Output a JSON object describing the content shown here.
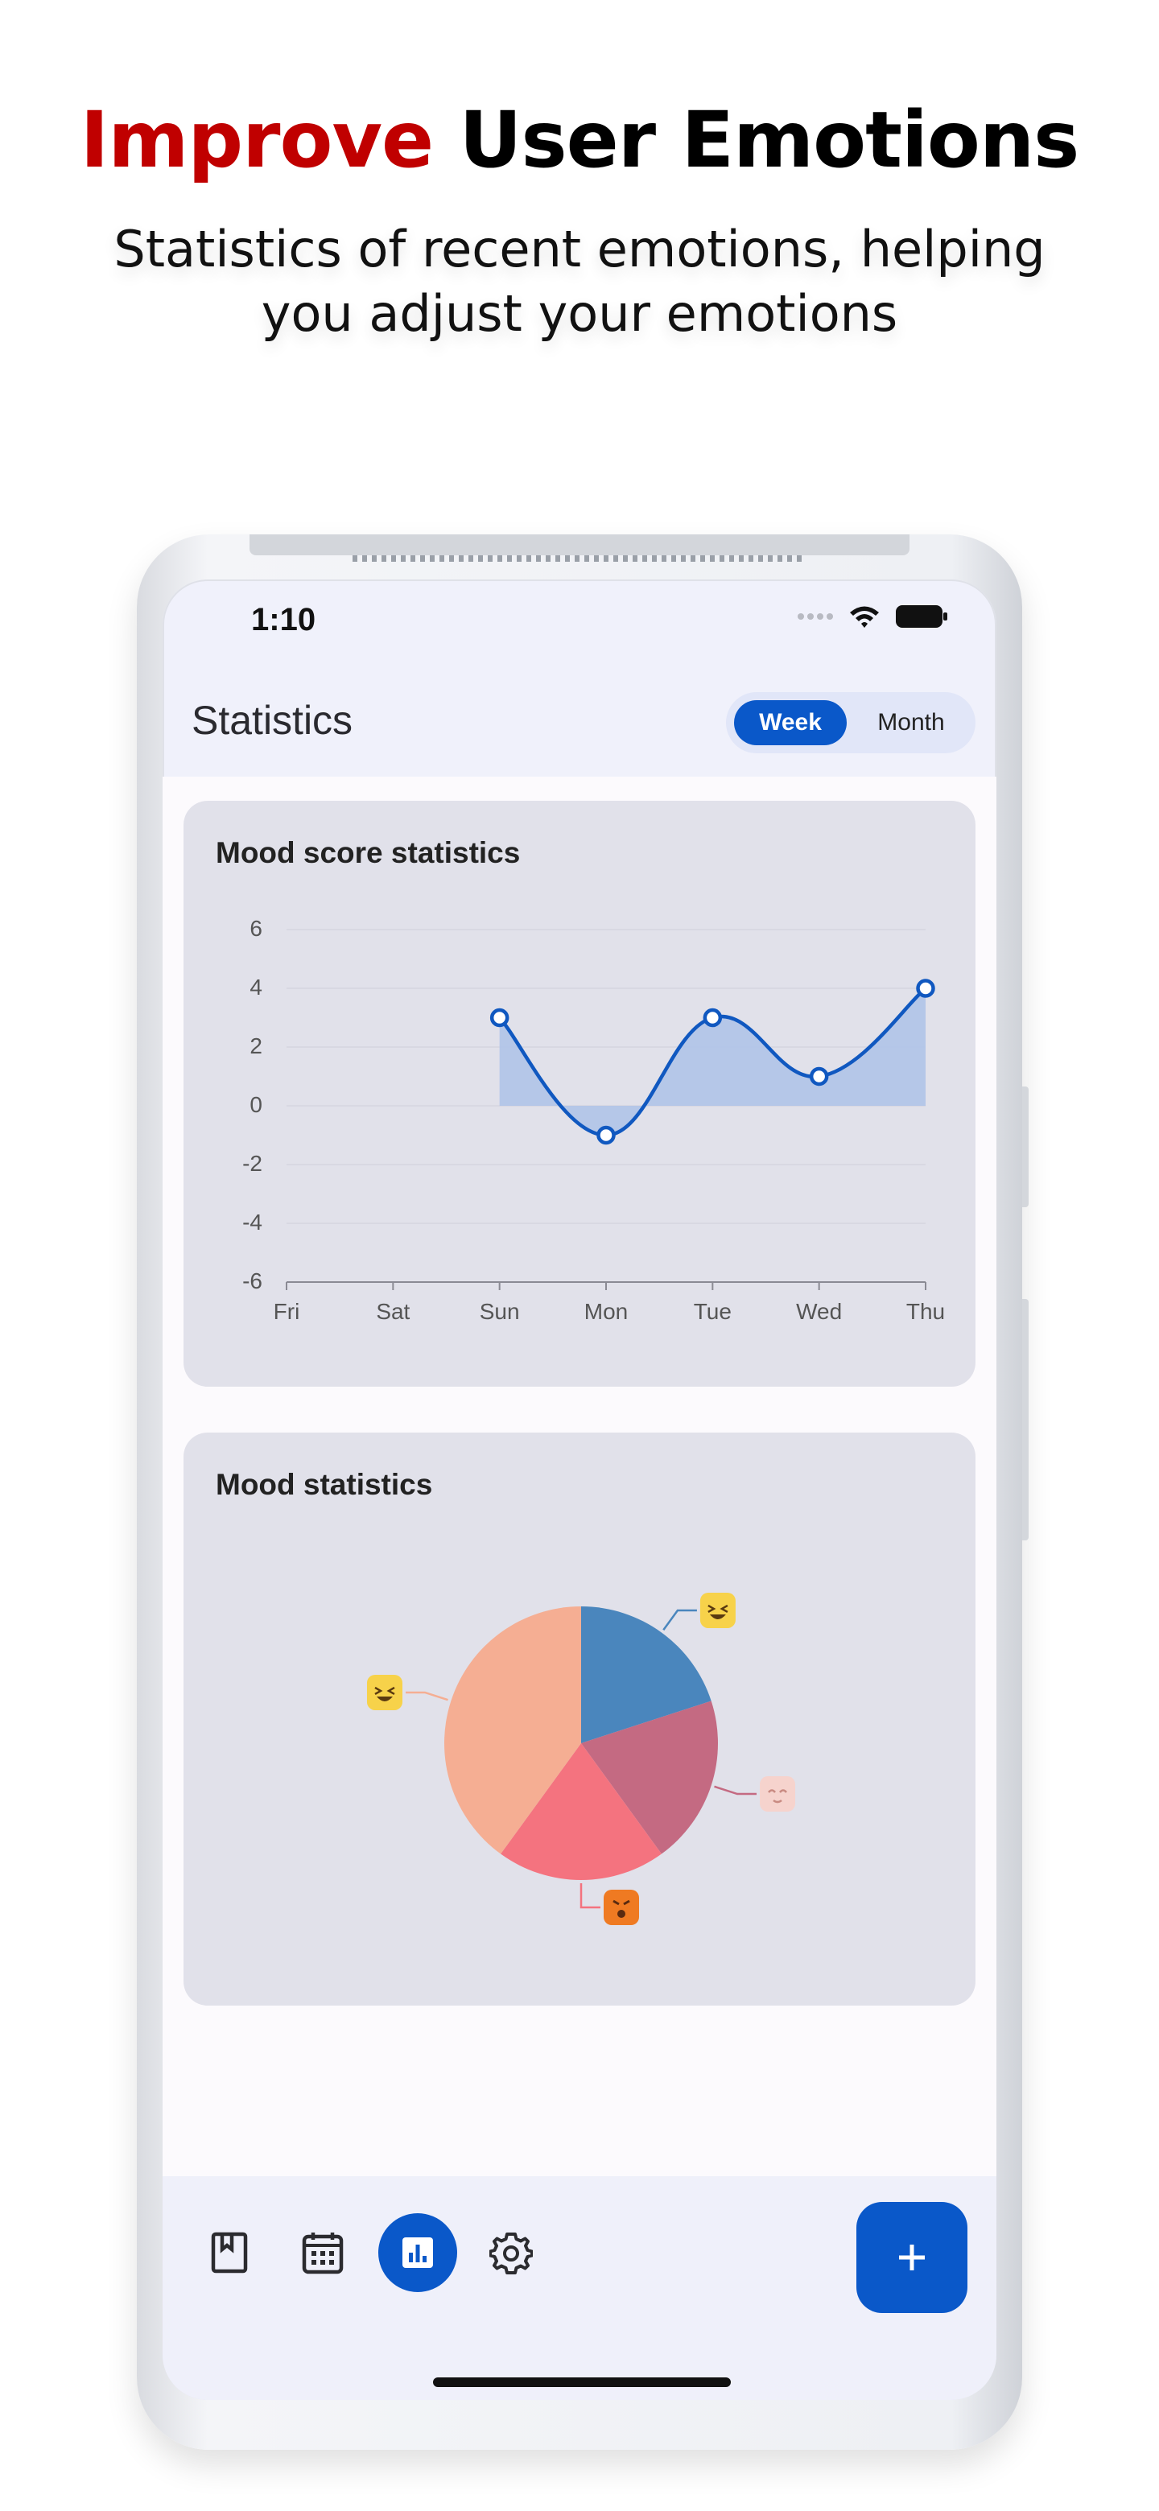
{
  "headline": {
    "accent": "Improve",
    "rest": " User Emotions"
  },
  "subline": "Statistics of recent emotions, helping you adjust your emotions",
  "status": {
    "time": "1:10"
  },
  "app": {
    "title": "Statistics",
    "segments": [
      "Week",
      "Month"
    ],
    "selected_segment": "Week"
  },
  "cards": {
    "mood_score": {
      "title": "Mood score statistics"
    },
    "mood": {
      "title": "Mood statistics"
    }
  },
  "chart_data": [
    {
      "type": "area",
      "title": "Mood score statistics",
      "categories": [
        "Fri",
        "Sat",
        "Sun",
        "Mon",
        "Tue",
        "Wed",
        "Thu"
      ],
      "y_ticks": [
        "6",
        "4",
        "2",
        "0",
        "-2",
        "-4",
        "-6"
      ],
      "ylim": [
        -6,
        6
      ],
      "series": [
        {
          "values": [
            null,
            null,
            3,
            -1,
            3,
            1,
            4
          ]
        }
      ],
      "grid": true,
      "colors": {
        "line": "#1058c0",
        "fill": "#b0c4e8"
      }
    },
    {
      "type": "pie",
      "title": "Mood statistics",
      "slices": [
        {
          "emoji": "laughing",
          "value": 20,
          "color": "#4a86bd"
        },
        {
          "emoji": "blushing",
          "value": 20,
          "color": "#c46a82"
        },
        {
          "emoji": "angry",
          "value": 20,
          "color": "#f4737f"
        },
        {
          "emoji": "smiling",
          "value": 40,
          "color": "#f5ae93"
        }
      ]
    }
  ],
  "bottom_nav": {
    "items": [
      "diary-icon",
      "calendar-icon",
      "statistics-icon",
      "settings-icon"
    ],
    "active": "statistics-icon",
    "fab": "plus-icon"
  },
  "colors": {
    "accent": "#0a58c9",
    "headline_accent": "#c00000"
  }
}
